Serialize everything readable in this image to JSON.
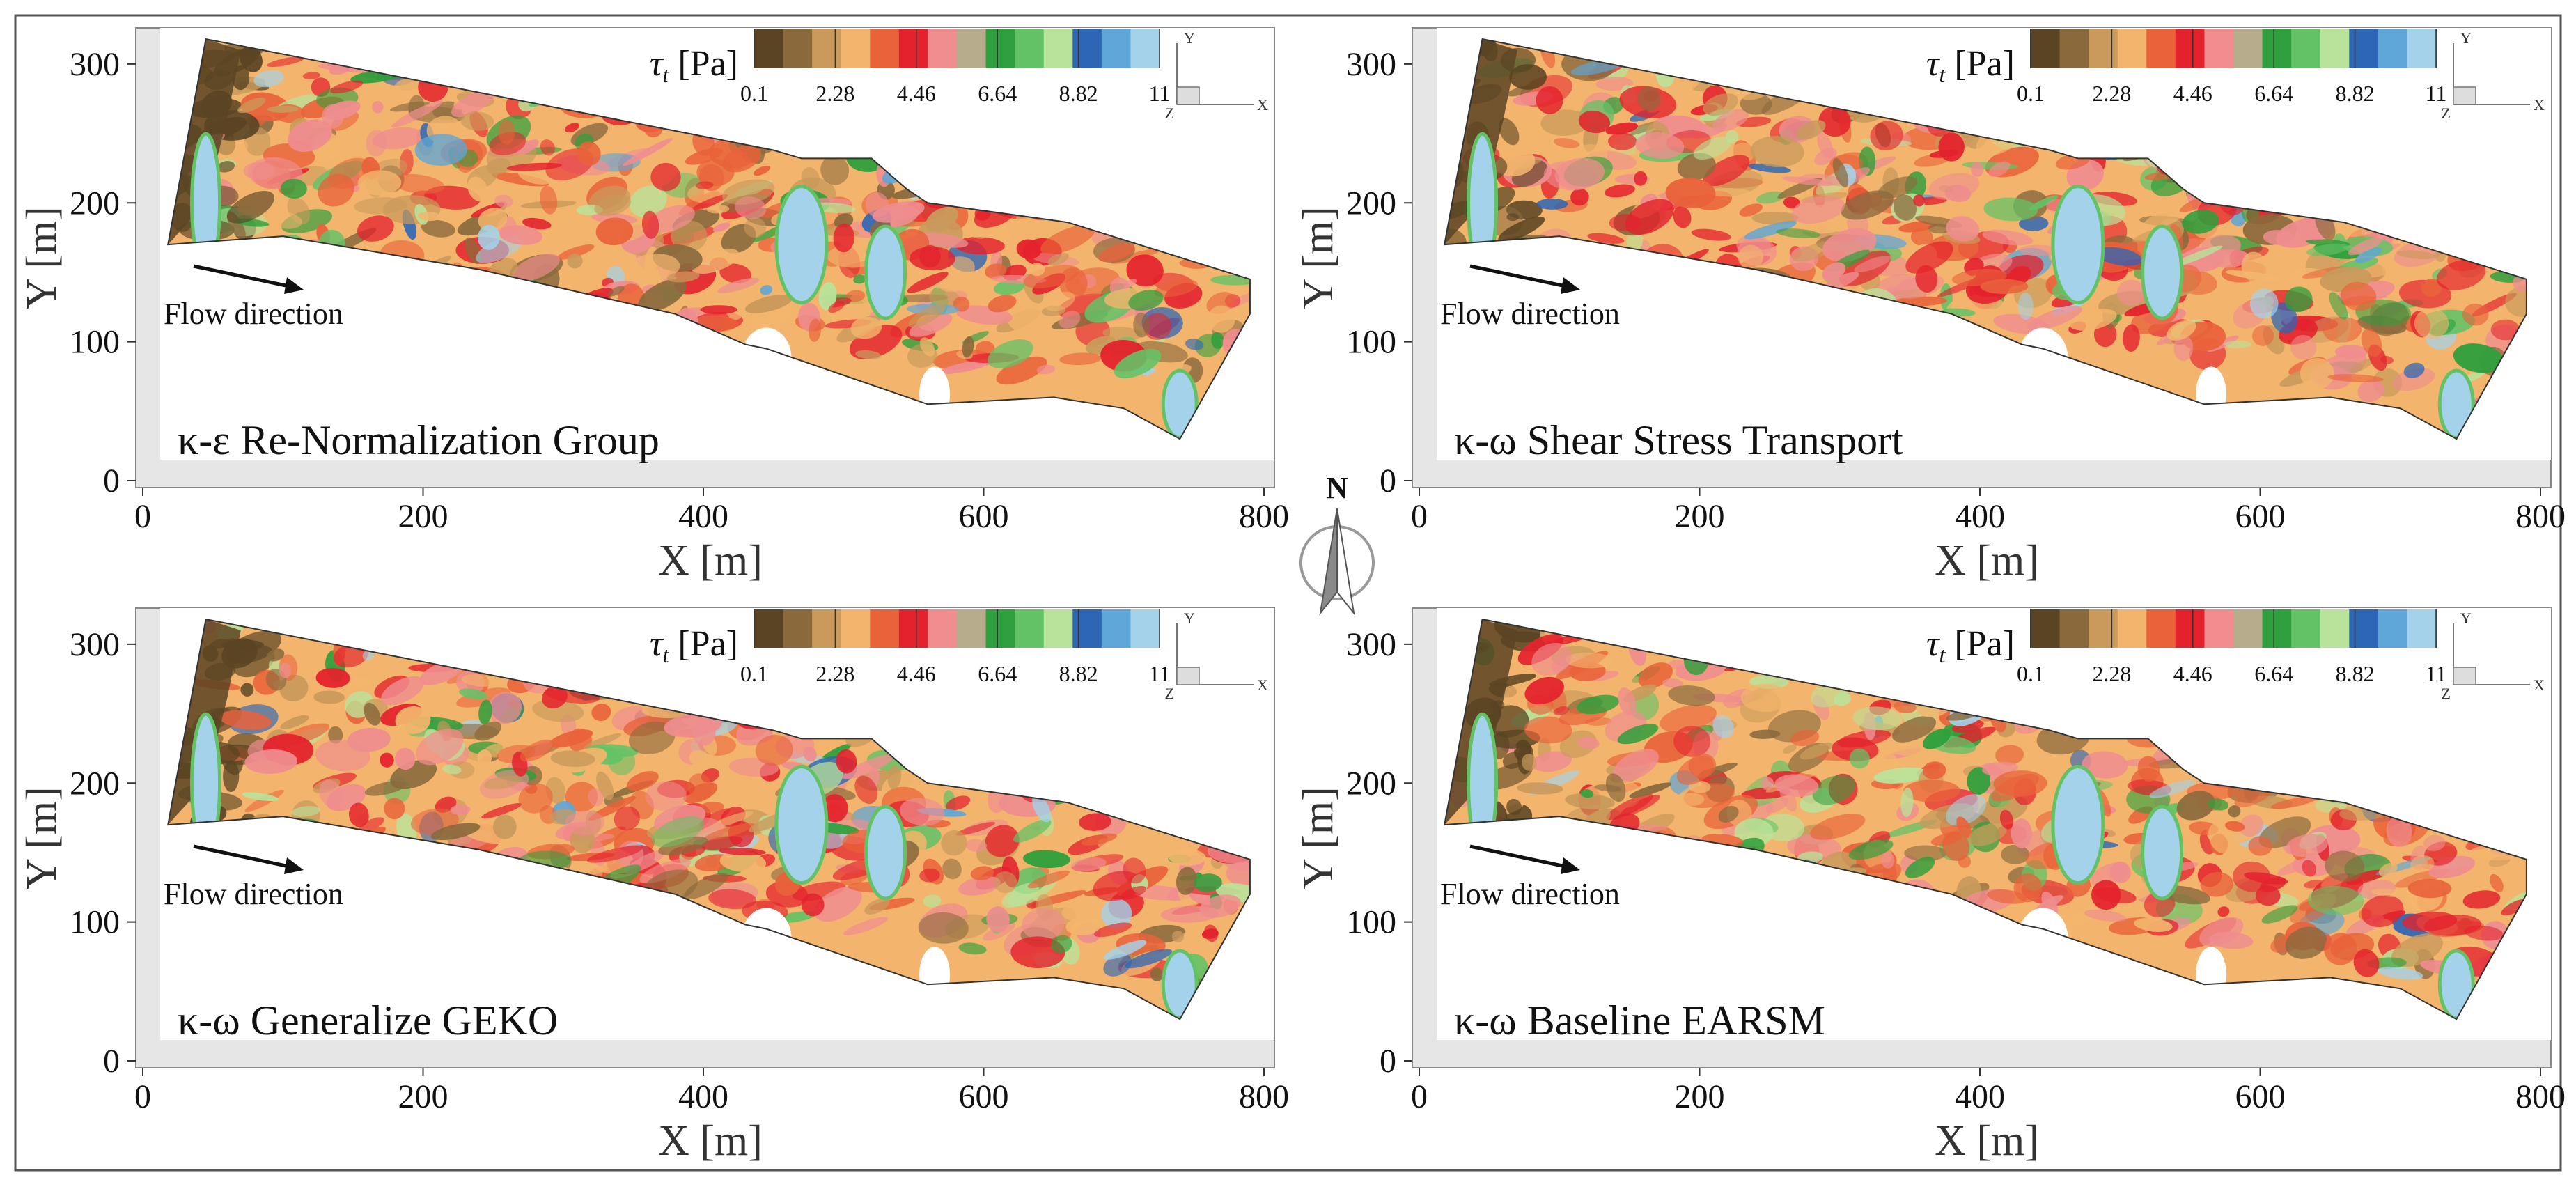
{
  "north_label": "N",
  "colors": {
    "colormap": [
      "#5a4423",
      "#8a6a3d",
      "#c99a5b",
      "#f3b56d",
      "#e9623a",
      "#e4222d",
      "#ef8d8f",
      "#b7ac8b",
      "#2e9f3c",
      "#64c266",
      "#b9e39a",
      "#2d66b5",
      "#5da6d7",
      "#a3d2ea"
    ],
    "domain_outline": "#333333",
    "frame_grey": "#e6e6e6"
  },
  "chart_data": [
    {
      "type": "heatmap",
      "panel": "top-left",
      "label": "κ-ε Re-Normalization Group",
      "xlabel": "X [m]",
      "ylabel": "Y [m]",
      "xlim": [
        0,
        800
      ],
      "ylim": [
        0,
        320
      ],
      "xticks": [
        "0",
        "200",
        "400",
        "600",
        "800"
      ],
      "yticks": [
        "0",
        "100",
        "200",
        "300"
      ],
      "colorbar": {
        "title": "τ",
        "title_sub": "t",
        "title_unit": " [Pa]",
        "min": 0.1,
        "max": 11,
        "ticks": [
          "0.1",
          "2.28",
          "4.46",
          "6.64",
          "8.82",
          "11"
        ]
      },
      "triad": {
        "y": "Y",
        "z": "Z",
        "x": "X"
      },
      "annotation": "Flow direction",
      "shear_level": 0.35
    },
    {
      "type": "heatmap",
      "panel": "top-right",
      "label": "κ-ω Shear Stress Transport",
      "xlabel": "X [m]",
      "ylabel": "Y [m]",
      "xlim": [
        0,
        800
      ],
      "ylim": [
        0,
        320
      ],
      "xticks": [
        "0",
        "200",
        "400",
        "600",
        "800"
      ],
      "yticks": [
        "0",
        "100",
        "200",
        "300"
      ],
      "colorbar": {
        "title": "τ",
        "title_sub": "t",
        "title_unit": " [Pa]",
        "min": 0.1,
        "max": 11,
        "ticks": [
          "0.1",
          "2.28",
          "4.46",
          "6.64",
          "8.82",
          "11"
        ]
      },
      "triad": {
        "y": "Y",
        "z": "Z",
        "x": "X"
      },
      "annotation": "Flow direction",
      "shear_level": 0.5
    },
    {
      "type": "heatmap",
      "panel": "bottom-left",
      "label": "κ-ω Generalize GEKO",
      "xlabel": "X [m]",
      "ylabel": "Y [m]",
      "xlim": [
        0,
        800
      ],
      "ylim": [
        0,
        320
      ],
      "xticks": [
        "0",
        "200",
        "400",
        "600",
        "800"
      ],
      "yticks": [
        "0",
        "100",
        "200",
        "300"
      ],
      "colorbar": {
        "title": "τ",
        "title_sub": "t",
        "title_unit": " [Pa]",
        "min": 0.1,
        "max": 11,
        "ticks": [
          "0.1",
          "2.28",
          "4.46",
          "6.64",
          "8.82",
          "11"
        ]
      },
      "triad": {
        "y": "Y",
        "z": "Z",
        "x": "X"
      },
      "annotation": "Flow direction",
      "shear_level": 0.65
    },
    {
      "type": "heatmap",
      "panel": "bottom-right",
      "label": "κ-ω Baseline EARSM",
      "xlabel": "X [m]",
      "ylabel": "Y [m]",
      "xlim": [
        0,
        800
      ],
      "ylim": [
        0,
        320
      ],
      "xticks": [
        "0",
        "200",
        "400",
        "600",
        "800"
      ],
      "yticks": [
        "0",
        "100",
        "200",
        "300"
      ],
      "colorbar": {
        "title": "τ",
        "title_sub": "t",
        "title_unit": " [Pa]",
        "min": 0.1,
        "max": 11,
        "ticks": [
          "0.1",
          "2.28",
          "4.46",
          "6.64",
          "8.82",
          "11"
        ]
      },
      "triad": {
        "y": "Y",
        "z": "Z",
        "x": "X"
      },
      "annotation": "Flow direction",
      "shear_level": 0.62
    }
  ]
}
